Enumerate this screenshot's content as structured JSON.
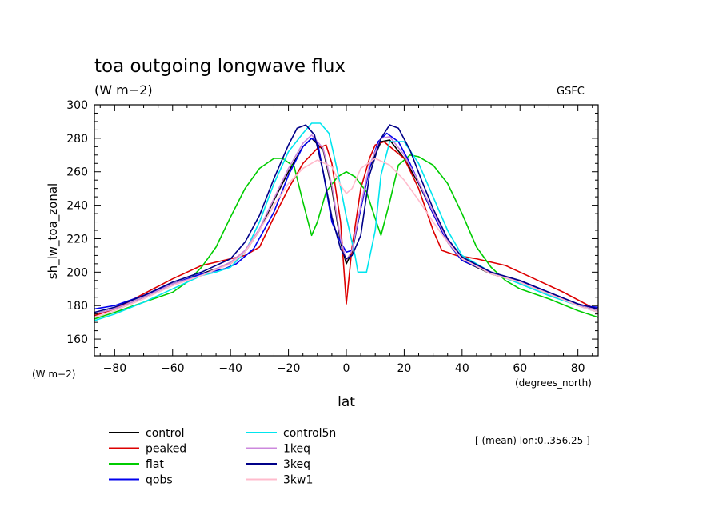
{
  "chart_data": {
    "type": "line",
    "title": "toa outgoing longwave flux",
    "units": "(W m−2)",
    "source_label": "GSFC",
    "ylabel": "sh_lw_toa_zonal",
    "y_units_label": "(W m−2)",
    "xlabel": "lat",
    "x_units_label": "(degrees_north)",
    "note": "[ (mean) lon:0..356.25 ]",
    "xlim": [
      -87,
      87
    ],
    "ylim": [
      150,
      300
    ],
    "xticks": [
      -80,
      -60,
      -40,
      -20,
      0,
      20,
      40,
      60,
      80
    ],
    "yticks": [
      160,
      180,
      200,
      220,
      240,
      260,
      280,
      300
    ],
    "grid": false,
    "legend_position": "bottom-left",
    "series": [
      {
        "name": "control",
        "color": "#000000",
        "points": [
          [
            -87,
            175
          ],
          [
            -80,
            178
          ],
          [
            -70,
            185
          ],
          [
            -60,
            193
          ],
          [
            -50,
            199
          ],
          [
            -40,
            205
          ],
          [
            -35,
            212
          ],
          [
            -30,
            225
          ],
          [
            -25,
            243
          ],
          [
            -20,
            260
          ],
          [
            -15,
            275
          ],
          [
            -12,
            280
          ],
          [
            -8,
            273
          ],
          [
            -5,
            250
          ],
          [
            -2,
            218
          ],
          [
            0,
            205
          ],
          [
            2,
            212
          ],
          [
            5,
            238
          ],
          [
            8,
            262
          ],
          [
            12,
            278
          ],
          [
            15,
            279
          ],
          [
            20,
            268
          ],
          [
            25,
            253
          ],
          [
            30,
            235
          ],
          [
            35,
            218
          ],
          [
            40,
            207
          ],
          [
            50,
            199
          ],
          [
            60,
            194
          ],
          [
            70,
            187
          ],
          [
            80,
            181
          ],
          [
            87,
            177
          ]
        ]
      },
      {
        "name": "peaked",
        "color": "#dd0000",
        "points": [
          [
            -87,
            174
          ],
          [
            -80,
            178
          ],
          [
            -70,
            187
          ],
          [
            -60,
            196
          ],
          [
            -50,
            204
          ],
          [
            -40,
            208
          ],
          [
            -35,
            210
          ],
          [
            -30,
            215
          ],
          [
            -25,
            233
          ],
          [
            -20,
            250
          ],
          [
            -15,
            265
          ],
          [
            -10,
            274
          ],
          [
            -7,
            276
          ],
          [
            -5,
            265
          ],
          [
            -2,
            230
          ],
          [
            0,
            181
          ],
          [
            2,
            215
          ],
          [
            5,
            250
          ],
          [
            8,
            268
          ],
          [
            10,
            276
          ],
          [
            13,
            278
          ],
          [
            20,
            268
          ],
          [
            25,
            250
          ],
          [
            30,
            225
          ],
          [
            33,
            213
          ],
          [
            38,
            210
          ],
          [
            45,
            208
          ],
          [
            55,
            204
          ],
          [
            65,
            196
          ],
          [
            75,
            188
          ],
          [
            87,
            177
          ]
        ]
      },
      {
        "name": "flat",
        "color": "#00cc00",
        "points": [
          [
            -87,
            172
          ],
          [
            -80,
            176
          ],
          [
            -70,
            182
          ],
          [
            -60,
            188
          ],
          [
            -55,
            194
          ],
          [
            -50,
            203
          ],
          [
            -45,
            215
          ],
          [
            -40,
            233
          ],
          [
            -35,
            250
          ],
          [
            -30,
            262
          ],
          [
            -25,
            268
          ],
          [
            -22,
            268
          ],
          [
            -18,
            263
          ],
          [
            -15,
            242
          ],
          [
            -12,
            222
          ],
          [
            -10,
            230
          ],
          [
            -7,
            248
          ],
          [
            -3,
            257
          ],
          [
            0,
            260
          ],
          [
            3,
            257
          ],
          [
            7,
            248
          ],
          [
            10,
            232
          ],
          [
            12,
            222
          ],
          [
            15,
            242
          ],
          [
            18,
            264
          ],
          [
            22,
            270
          ],
          [
            25,
            269
          ],
          [
            30,
            264
          ],
          [
            35,
            253
          ],
          [
            40,
            235
          ],
          [
            45,
            215
          ],
          [
            50,
            203
          ],
          [
            55,
            195
          ],
          [
            60,
            190
          ],
          [
            70,
            184
          ],
          [
            80,
            177
          ],
          [
            87,
            173
          ]
        ]
      },
      {
        "name": "qobs",
        "color": "#0000ee",
        "points": [
          [
            -87,
            178
          ],
          [
            -80,
            180
          ],
          [
            -75,
            183
          ],
          [
            -70,
            186
          ],
          [
            -60,
            193
          ],
          [
            -50,
            199
          ],
          [
            -42,
            202
          ],
          [
            -38,
            205
          ],
          [
            -32,
            214
          ],
          [
            -25,
            236
          ],
          [
            -20,
            258
          ],
          [
            -15,
            275
          ],
          [
            -12,
            280
          ],
          [
            -10,
            278
          ],
          [
            -8,
            260
          ],
          [
            -5,
            230
          ],
          [
            -2,
            218
          ],
          [
            0,
            212
          ],
          [
            2,
            213
          ],
          [
            5,
            238
          ],
          [
            8,
            262
          ],
          [
            11,
            278
          ],
          [
            14,
            283
          ],
          [
            18,
            278
          ],
          [
            22,
            265
          ],
          [
            26,
            250
          ],
          [
            30,
            235
          ],
          [
            35,
            218
          ],
          [
            40,
            207
          ],
          [
            48,
            201
          ],
          [
            55,
            197
          ],
          [
            62,
            193
          ],
          [
            70,
            187
          ],
          [
            80,
            180
          ],
          [
            87,
            179
          ]
        ]
      },
      {
        "name": "control5n",
        "color": "#00e5ee",
        "points": [
          [
            -87,
            171
          ],
          [
            -80,
            175
          ],
          [
            -70,
            182
          ],
          [
            -60,
            190
          ],
          [
            -50,
            198
          ],
          [
            -45,
            200
          ],
          [
            -40,
            203
          ],
          [
            -35,
            212
          ],
          [
            -30,
            230
          ],
          [
            -25,
            253
          ],
          [
            -20,
            272
          ],
          [
            -15,
            283
          ],
          [
            -12,
            289
          ],
          [
            -9,
            289
          ],
          [
            -6,
            283
          ],
          [
            -3,
            260
          ],
          [
            0,
            233
          ],
          [
            3,
            210
          ],
          [
            4,
            200
          ],
          [
            7,
            200
          ],
          [
            10,
            225
          ],
          [
            12,
            258
          ],
          [
            15,
            278
          ],
          [
            20,
            278
          ],
          [
            25,
            265
          ],
          [
            30,
            245
          ],
          [
            35,
            225
          ],
          [
            40,
            210
          ],
          [
            50,
            200
          ],
          [
            60,
            193
          ],
          [
            70,
            186
          ],
          [
            80,
            180
          ],
          [
            87,
            176
          ]
        ]
      },
      {
        "name": "1keq",
        "color": "#cc88dd",
        "points": [
          [
            -87,
            175
          ],
          [
            -80,
            178
          ],
          [
            -70,
            185
          ],
          [
            -60,
            193
          ],
          [
            -50,
            198
          ],
          [
            -40,
            206
          ],
          [
            -35,
            213
          ],
          [
            -30,
            226
          ],
          [
            -25,
            244
          ],
          [
            -20,
            262
          ],
          [
            -15,
            277
          ],
          [
            -12,
            282
          ],
          [
            -8,
            274
          ],
          [
            -5,
            252
          ],
          [
            -2,
            220
          ],
          [
            0,
            207
          ],
          [
            2,
            213
          ],
          [
            5,
            240
          ],
          [
            8,
            264
          ],
          [
            12,
            280
          ],
          [
            15,
            281
          ],
          [
            20,
            270
          ],
          [
            25,
            254
          ],
          [
            30,
            236
          ],
          [
            35,
            219
          ],
          [
            40,
            208
          ],
          [
            50,
            200
          ],
          [
            60,
            194
          ],
          [
            70,
            187
          ],
          [
            80,
            181
          ],
          [
            87,
            177
          ]
        ]
      },
      {
        "name": "3keq",
        "color": "#000088",
        "points": [
          [
            -87,
            176
          ],
          [
            -80,
            179
          ],
          [
            -70,
            186
          ],
          [
            -60,
            194
          ],
          [
            -50,
            200
          ],
          [
            -40,
            208
          ],
          [
            -35,
            218
          ],
          [
            -30,
            234
          ],
          [
            -25,
            256
          ],
          [
            -20,
            276
          ],
          [
            -17,
            286
          ],
          [
            -14,
            288
          ],
          [
            -11,
            282
          ],
          [
            -8,
            260
          ],
          [
            -5,
            233
          ],
          [
            -2,
            214
          ],
          [
            0,
            208
          ],
          [
            2,
            210
          ],
          [
            5,
            222
          ],
          [
            8,
            258
          ],
          [
            12,
            280
          ],
          [
            15,
            288
          ],
          [
            18,
            286
          ],
          [
            22,
            273
          ],
          [
            26,
            255
          ],
          [
            30,
            238
          ],
          [
            35,
            220
          ],
          [
            40,
            209
          ],
          [
            50,
            200
          ],
          [
            60,
            195
          ],
          [
            70,
            188
          ],
          [
            80,
            181
          ],
          [
            87,
            178
          ]
        ]
      },
      {
        "name": "3kw1",
        "color": "#ffbbcc",
        "points": [
          [
            -87,
            173
          ],
          [
            -80,
            177
          ],
          [
            -70,
            184
          ],
          [
            -60,
            192
          ],
          [
            -50,
            198
          ],
          [
            -40,
            205
          ],
          [
            -35,
            212
          ],
          [
            -30,
            225
          ],
          [
            -25,
            240
          ],
          [
            -20,
            253
          ],
          [
            -15,
            262
          ],
          [
            -10,
            267
          ],
          [
            -5,
            263
          ],
          [
            -2,
            252
          ],
          [
            0,
            247
          ],
          [
            2,
            250
          ],
          [
            5,
            262
          ],
          [
            10,
            268
          ],
          [
            15,
            264
          ],
          [
            20,
            255
          ],
          [
            25,
            243
          ],
          [
            30,
            230
          ],
          [
            35,
            218
          ],
          [
            40,
            208
          ],
          [
            50,
            199
          ],
          [
            60,
            194
          ],
          [
            70,
            187
          ],
          [
            80,
            180
          ],
          [
            87,
            176
          ]
        ]
      }
    ]
  }
}
